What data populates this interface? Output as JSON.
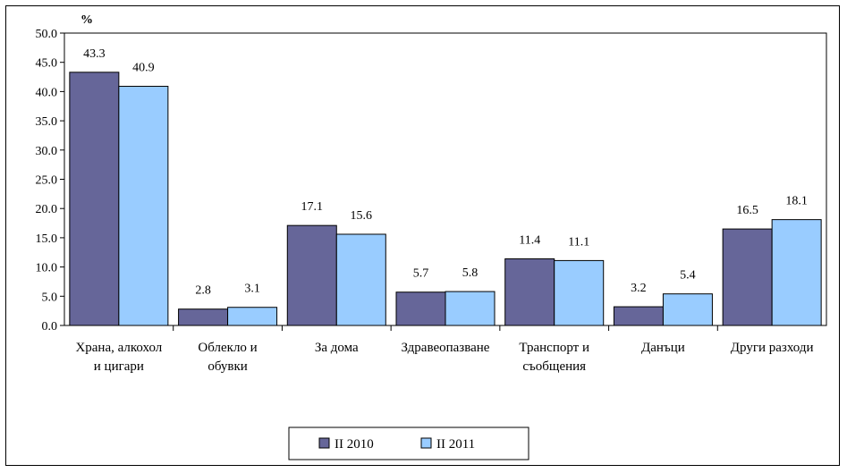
{
  "chart_data": {
    "type": "bar",
    "unit_label": "%",
    "categories": [
      [
        "Храна, алкохол",
        "и цигари"
      ],
      [
        "Облекло и",
        "обувки"
      ],
      [
        "За дома"
      ],
      [
        "Здравеопазване"
      ],
      [
        "Транспорт и",
        "съобщения"
      ],
      [
        "Данъци"
      ],
      [
        "Други разходи"
      ]
    ],
    "series": [
      {
        "name": "II 2010",
        "color": "#666699",
        "values": [
          43.3,
          2.8,
          17.1,
          5.7,
          11.4,
          3.2,
          16.5
        ]
      },
      {
        "name": "II 2011",
        "color": "#99ccff",
        "values": [
          40.9,
          3.1,
          15.6,
          5.8,
          11.1,
          5.4,
          18.1
        ]
      }
    ],
    "ylim": [
      0,
      50
    ],
    "yticks": [
      "0.0",
      "5.0",
      "10.0",
      "15.0",
      "20.0",
      "25.0",
      "30.0",
      "35.0",
      "40.0",
      "45.0",
      "50.0"
    ],
    "grid": false,
    "legend": "bottom"
  }
}
